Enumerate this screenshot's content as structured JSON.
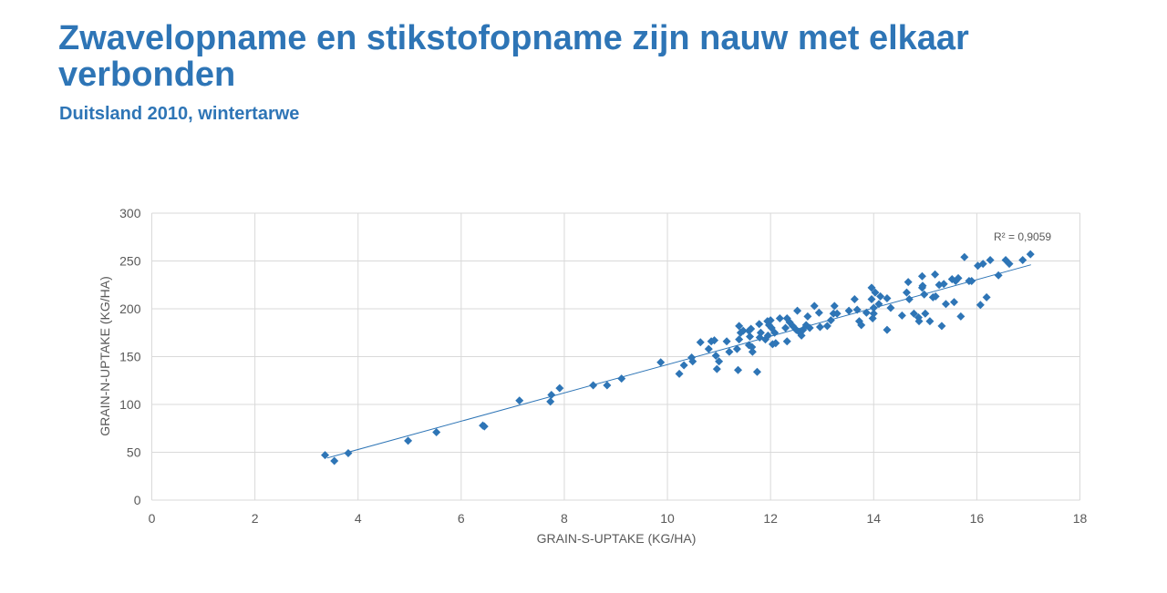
{
  "slide": {
    "title": "Zwavelopname en stikstofopname zijn nauw met elkaar verbonden",
    "subtitle": "Duitsland 2010, wintertarwe"
  },
  "colors": {
    "title": "#2E75B6",
    "marker": "#2E75B6",
    "grid": "#D9D9D9",
    "tick_text": "#595959"
  },
  "chart_data": {
    "type": "scatter",
    "title": "",
    "xlabel": "GRAIN-S-UPTAKE (KG/HA)",
    "ylabel": "GRAIN-N-UPTAKE  (KG/HA)",
    "xlim": [
      0,
      18
    ],
    "ylim": [
      0,
      300
    ],
    "xticks": [
      0,
      2,
      4,
      6,
      8,
      10,
      12,
      14,
      16,
      18
    ],
    "yticks": [
      0,
      50,
      100,
      150,
      200,
      250,
      300
    ],
    "grid": true,
    "legend": null,
    "trendline": {
      "type": "linear",
      "x": [
        3.4,
        17.05
      ],
      "y": [
        44,
        246
      ],
      "label": "R² = 0,9059",
      "r2": 0.9059
    },
    "series": [
      {
        "name": "GRAIN-N-UPTAKE",
        "points": [
          [
            3.36,
            47
          ],
          [
            3.54,
            41
          ],
          [
            3.81,
            49
          ],
          [
            4.97,
            62
          ],
          [
            5.52,
            71
          ],
          [
            6.42,
            78
          ],
          [
            6.45,
            77
          ],
          [
            7.13,
            104
          ],
          [
            7.73,
            103
          ],
          [
            7.75,
            110
          ],
          [
            7.91,
            117
          ],
          [
            8.56,
            120
          ],
          [
            8.83,
            120
          ],
          [
            9.11,
            127
          ],
          [
            9.87,
            144
          ],
          [
            10.23,
            132
          ],
          [
            10.32,
            141
          ],
          [
            10.47,
            149
          ],
          [
            10.49,
            145
          ],
          [
            10.64,
            165
          ],
          [
            10.8,
            158
          ],
          [
            10.85,
            166
          ],
          [
            10.91,
            167
          ],
          [
            10.94,
            151
          ],
          [
            11.0,
            145
          ],
          [
            10.96,
            137
          ],
          [
            11.15,
            166
          ],
          [
            11.2,
            155
          ],
          [
            11.35,
            158
          ],
          [
            11.37,
            136
          ],
          [
            11.39,
            168
          ],
          [
            11.39,
            182
          ],
          [
            11.42,
            175
          ],
          [
            11.47,
            177
          ],
          [
            11.58,
            177
          ],
          [
            11.58,
            162
          ],
          [
            11.62,
            179
          ],
          [
            11.6,
            171
          ],
          [
            11.64,
            160
          ],
          [
            11.65,
            155
          ],
          [
            11.74,
            134
          ],
          [
            11.78,
            184
          ],
          [
            11.81,
            175
          ],
          [
            11.79,
            170
          ],
          [
            11.9,
            168
          ],
          [
            11.95,
            172
          ],
          [
            11.94,
            187
          ],
          [
            11.97,
            183
          ],
          [
            12.0,
            188
          ],
          [
            12.02,
            180
          ],
          [
            12.04,
            163
          ],
          [
            12.08,
            175
          ],
          [
            12.1,
            164
          ],
          [
            12.18,
            190
          ],
          [
            12.29,
            180
          ],
          [
            12.32,
            190
          ],
          [
            12.32,
            166
          ],
          [
            12.37,
            186
          ],
          [
            12.43,
            182
          ],
          [
            12.52,
            198
          ],
          [
            12.57,
            175
          ],
          [
            12.6,
            172
          ],
          [
            12.63,
            178
          ],
          [
            12.69,
            183
          ],
          [
            12.72,
            192
          ],
          [
            12.76,
            180
          ],
          [
            12.85,
            203
          ],
          [
            12.94,
            196
          ],
          [
            12.96,
            181
          ],
          [
            13.1,
            182
          ],
          [
            13.17,
            188
          ],
          [
            13.22,
            195
          ],
          [
            13.24,
            203
          ],
          [
            13.29,
            195
          ],
          [
            13.52,
            198
          ],
          [
            13.63,
            210
          ],
          [
            13.68,
            199
          ],
          [
            13.72,
            187
          ],
          [
            13.76,
            183
          ],
          [
            13.86,
            196
          ],
          [
            13.96,
            222
          ],
          [
            13.96,
            210
          ],
          [
            14.0,
            201
          ],
          [
            14.0,
            195
          ],
          [
            14.03,
            217
          ],
          [
            14.13,
            213
          ],
          [
            14.1,
            205
          ],
          [
            14.26,
            211
          ],
          [
            14.26,
            178
          ],
          [
            14.33,
            201
          ],
          [
            14.55,
            193
          ],
          [
            14.64,
            217
          ],
          [
            14.67,
            228
          ],
          [
            14.69,
            210
          ],
          [
            14.78,
            195
          ],
          [
            14.87,
            191
          ],
          [
            14.88,
            187
          ],
          [
            14.94,
            234
          ],
          [
            14.94,
            222
          ],
          [
            14.98,
            215
          ],
          [
            15.0,
            195
          ],
          [
            15.09,
            187
          ],
          [
            15.15,
            212
          ],
          [
            15.19,
            236
          ],
          [
            15.27,
            225
          ],
          [
            15.32,
            182
          ],
          [
            15.36,
            226
          ],
          [
            15.52,
            231
          ],
          [
            15.56,
            207
          ],
          [
            15.59,
            229
          ],
          [
            15.64,
            232
          ],
          [
            15.69,
            192
          ],
          [
            15.76,
            254
          ],
          [
            15.85,
            229
          ],
          [
            15.9,
            229
          ],
          [
            16.02,
            245
          ],
          [
            16.07,
            204
          ],
          [
            16.12,
            247
          ],
          [
            16.19,
            212
          ],
          [
            16.26,
            251
          ],
          [
            16.42,
            235
          ],
          [
            16.56,
            251
          ],
          [
            16.63,
            247
          ],
          [
            16.89,
            251
          ],
          [
            17.04,
            257
          ],
          [
            15.2,
            213
          ],
          [
            15.4,
            205
          ],
          [
            14.95,
            224
          ],
          [
            13.98,
            190
          ],
          [
            12.5,
            178
          ]
        ]
      }
    ]
  }
}
